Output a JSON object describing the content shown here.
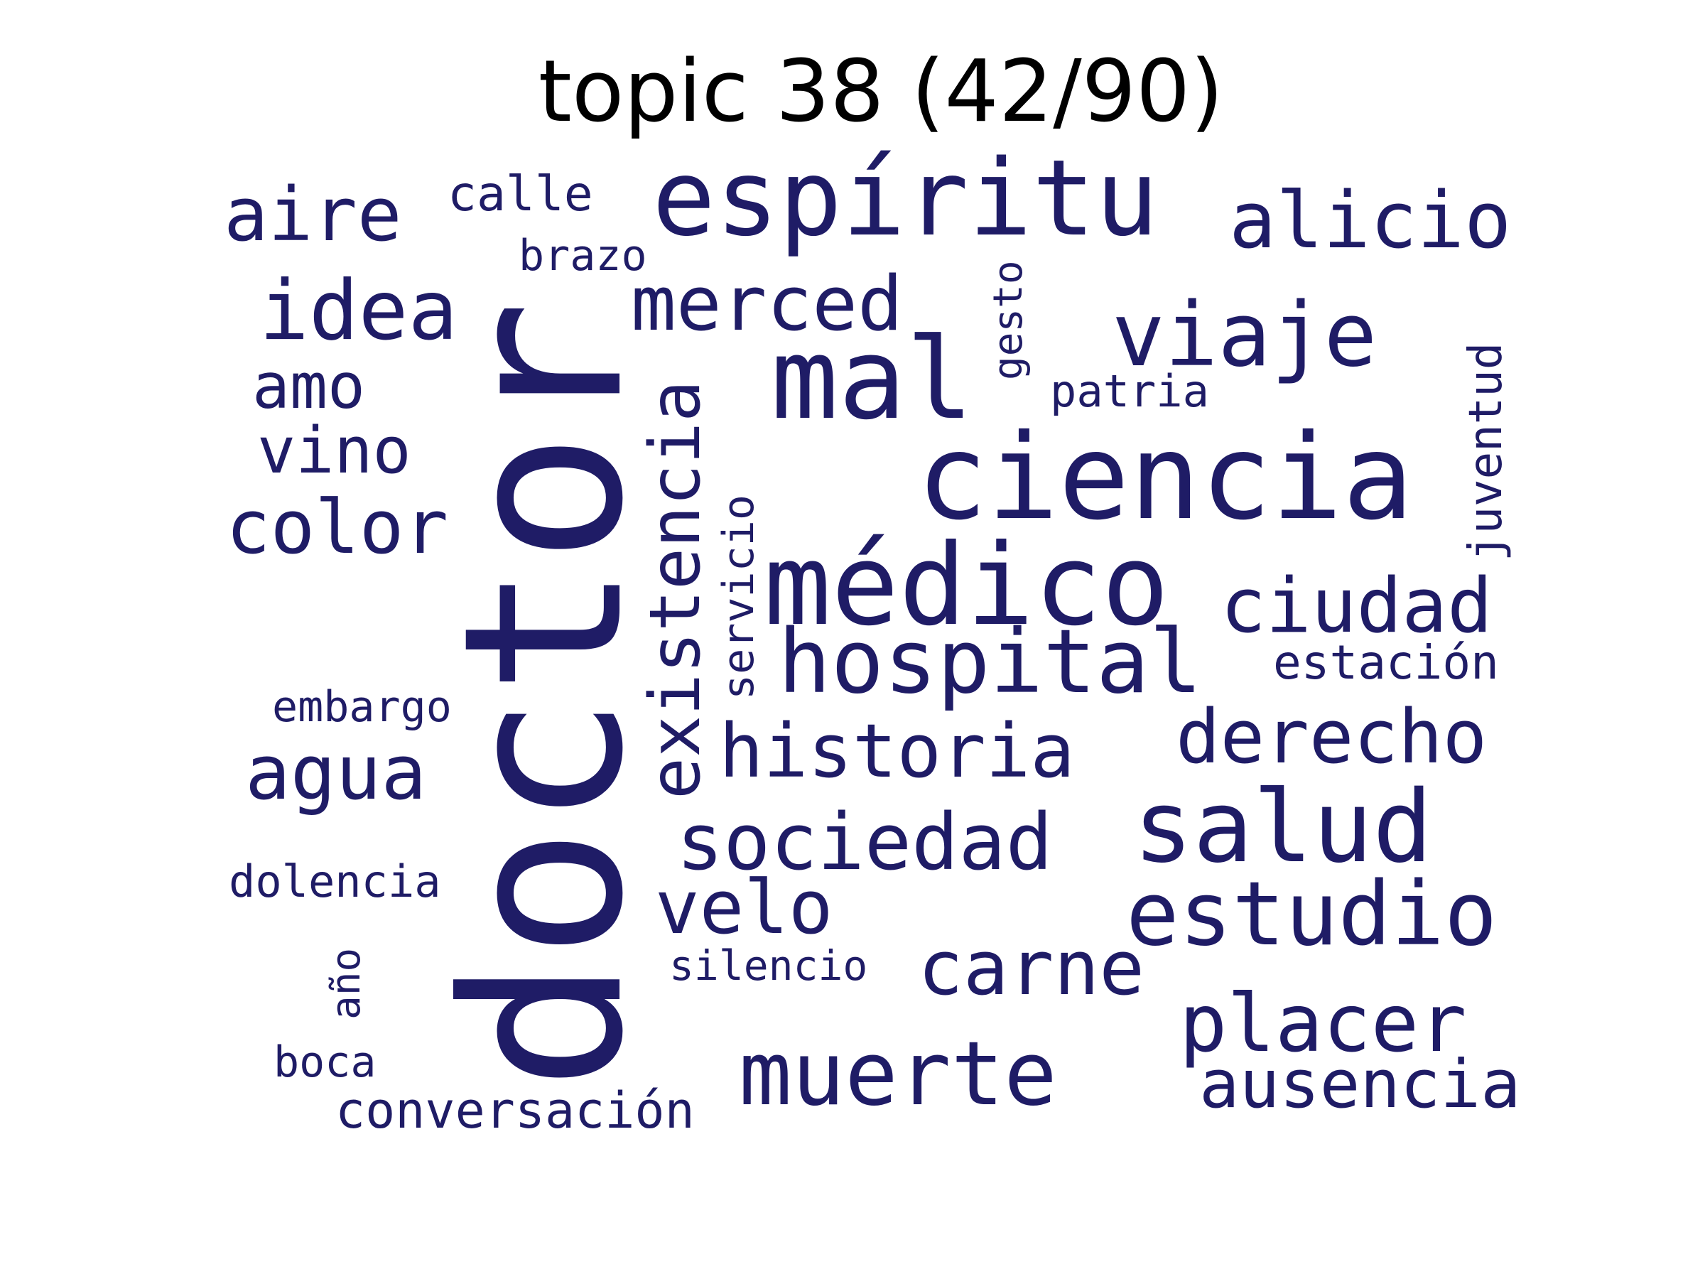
{
  "title": "topic 38 (42/90)",
  "colors": {
    "word": "#1f1c66",
    "title": "#000000",
    "background": "#ffffff"
  },
  "words": {
    "doctor": "doctor",
    "espiritu": "espíritu",
    "ciencia": "ciencia",
    "medico": "médico",
    "mal": "mal",
    "hospital": "hospital",
    "salud": "salud",
    "estudio": "estudio",
    "muerte": "muerte",
    "viaje": "viaje",
    "sociedad": "sociedad",
    "idea": "idea",
    "alicio": "alicio",
    "merced": "merced",
    "ciudad": "ciudad",
    "historia": "historia",
    "derecho": "derecho",
    "placer": "placer",
    "existencia": "existencia",
    "agua": "agua",
    "carne": "carne",
    "aire": "aire",
    "color": "color",
    "velo": "velo",
    "ausencia": "ausencia",
    "vino": "vino",
    "amo": "amo",
    "juventud": "juventud",
    "servicio": "servicio",
    "conversacion": "conversación",
    "estacion": "estación",
    "calle": "calle",
    "patria": "patria",
    "brazo": "brazo",
    "embargo": "embargo",
    "dolencia": "dolencia",
    "silencio": "silencio",
    "gesto": "gesto",
    "boca": "boca",
    "ano": "año"
  }
}
